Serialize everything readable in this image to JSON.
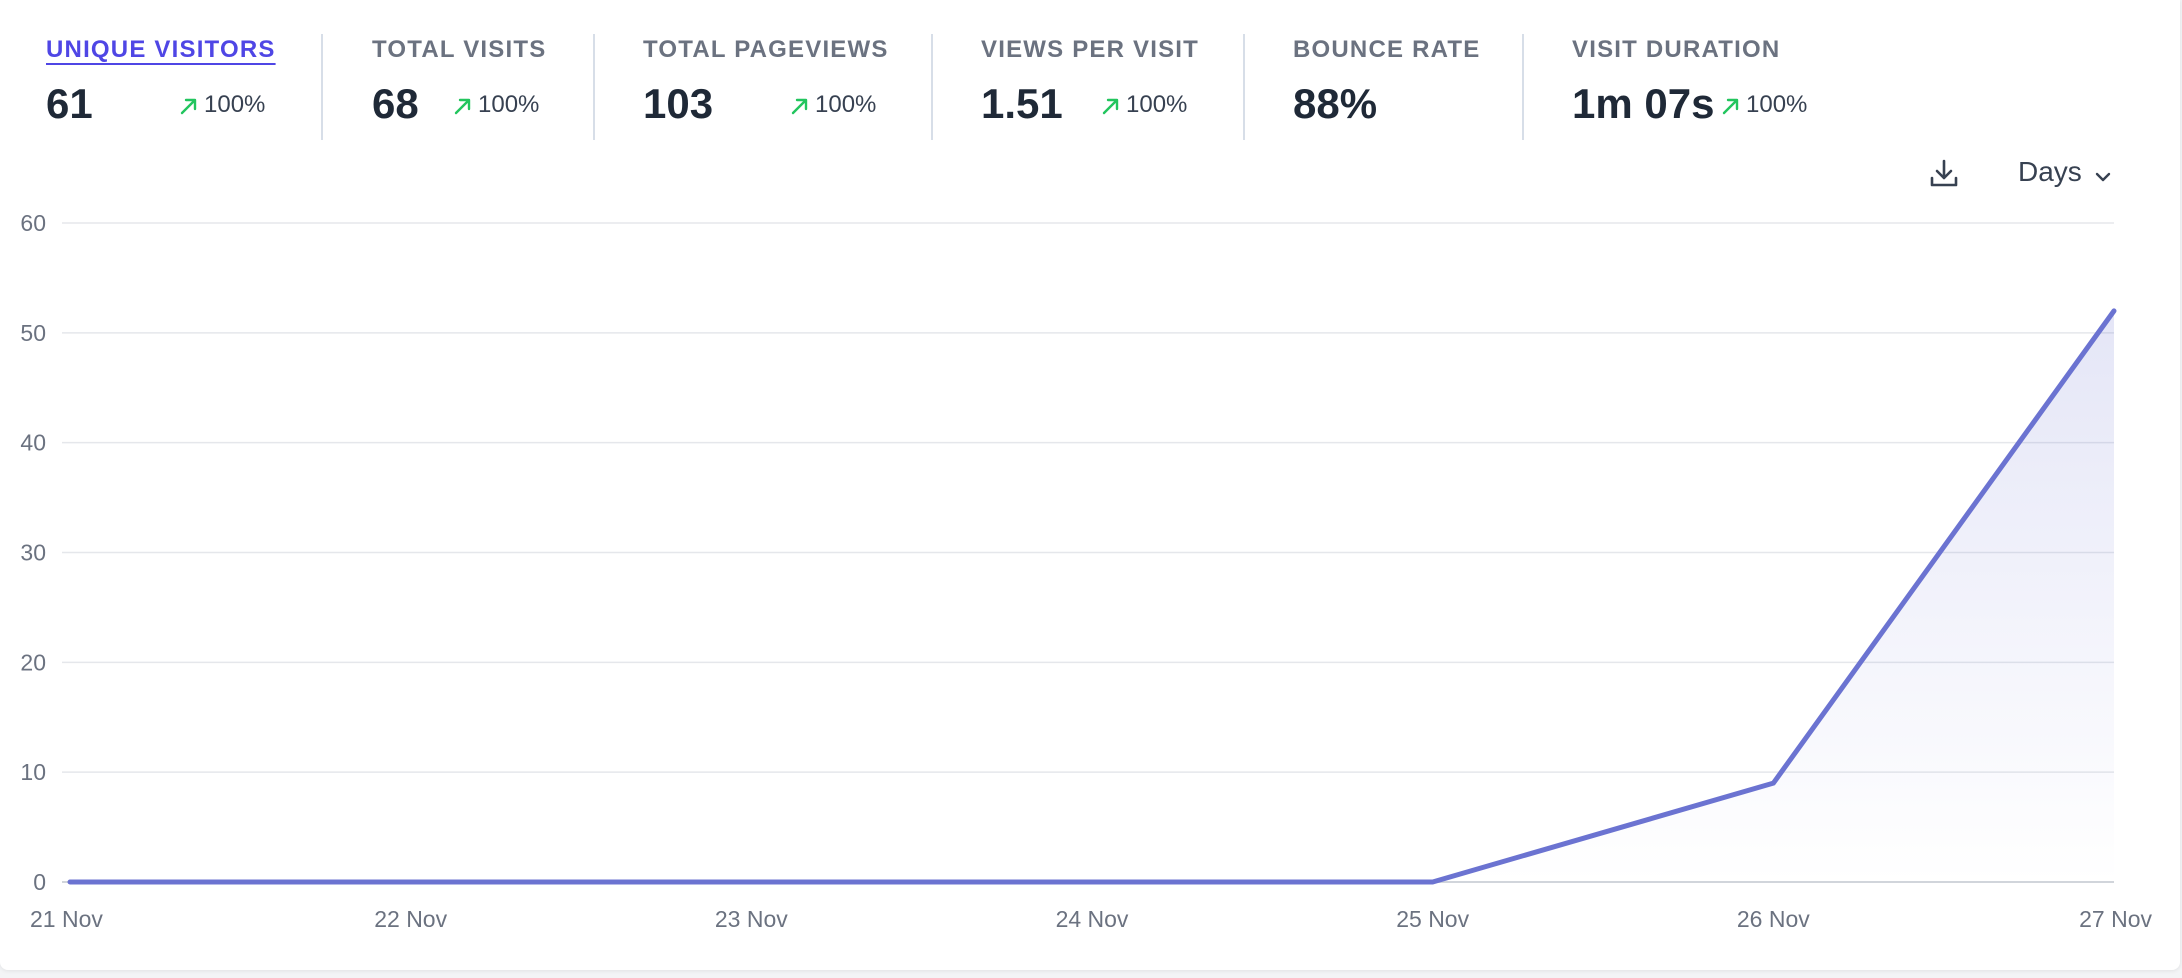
{
  "metrics": [
    {
      "label": "UNIQUE VISITORS",
      "value": "61",
      "change": "100%",
      "active": true
    },
    {
      "label": "TOTAL VISITS",
      "value": "68",
      "change": "100%",
      "active": false
    },
    {
      "label": "TOTAL PAGEVIEWS",
      "value": "103",
      "change": "100%",
      "active": false
    },
    {
      "label": "VIEWS PER VISIT",
      "value": "1.51",
      "change": "100%",
      "active": false
    },
    {
      "label": "BOUNCE RATE",
      "value": "88%",
      "change": "",
      "active": false
    },
    {
      "label": "VISIT DURATION",
      "value": "1m 07s",
      "change": "100%",
      "active": false
    }
  ],
  "controls": {
    "download_icon": "download-icon",
    "interval_label": "Days",
    "interval_icon": "chevron-down-icon"
  },
  "colors": {
    "accent": "#4f46e5",
    "line": "#6b73d1",
    "up": "#22c55e",
    "grid": "#e5e7eb"
  },
  "chart_data": {
    "type": "area",
    "x": [
      "21 Nov",
      "22 Nov",
      "23 Nov",
      "24 Nov",
      "25 Nov",
      "26 Nov",
      "27 Nov"
    ],
    "series": [
      {
        "values": [
          0,
          0,
          0,
          0,
          0,
          9,
          52
        ]
      }
    ],
    "ylim": [
      0,
      60
    ],
    "yticks": [
      0,
      10,
      20,
      30,
      40,
      50,
      60
    ],
    "grid": true,
    "legend": "none"
  }
}
